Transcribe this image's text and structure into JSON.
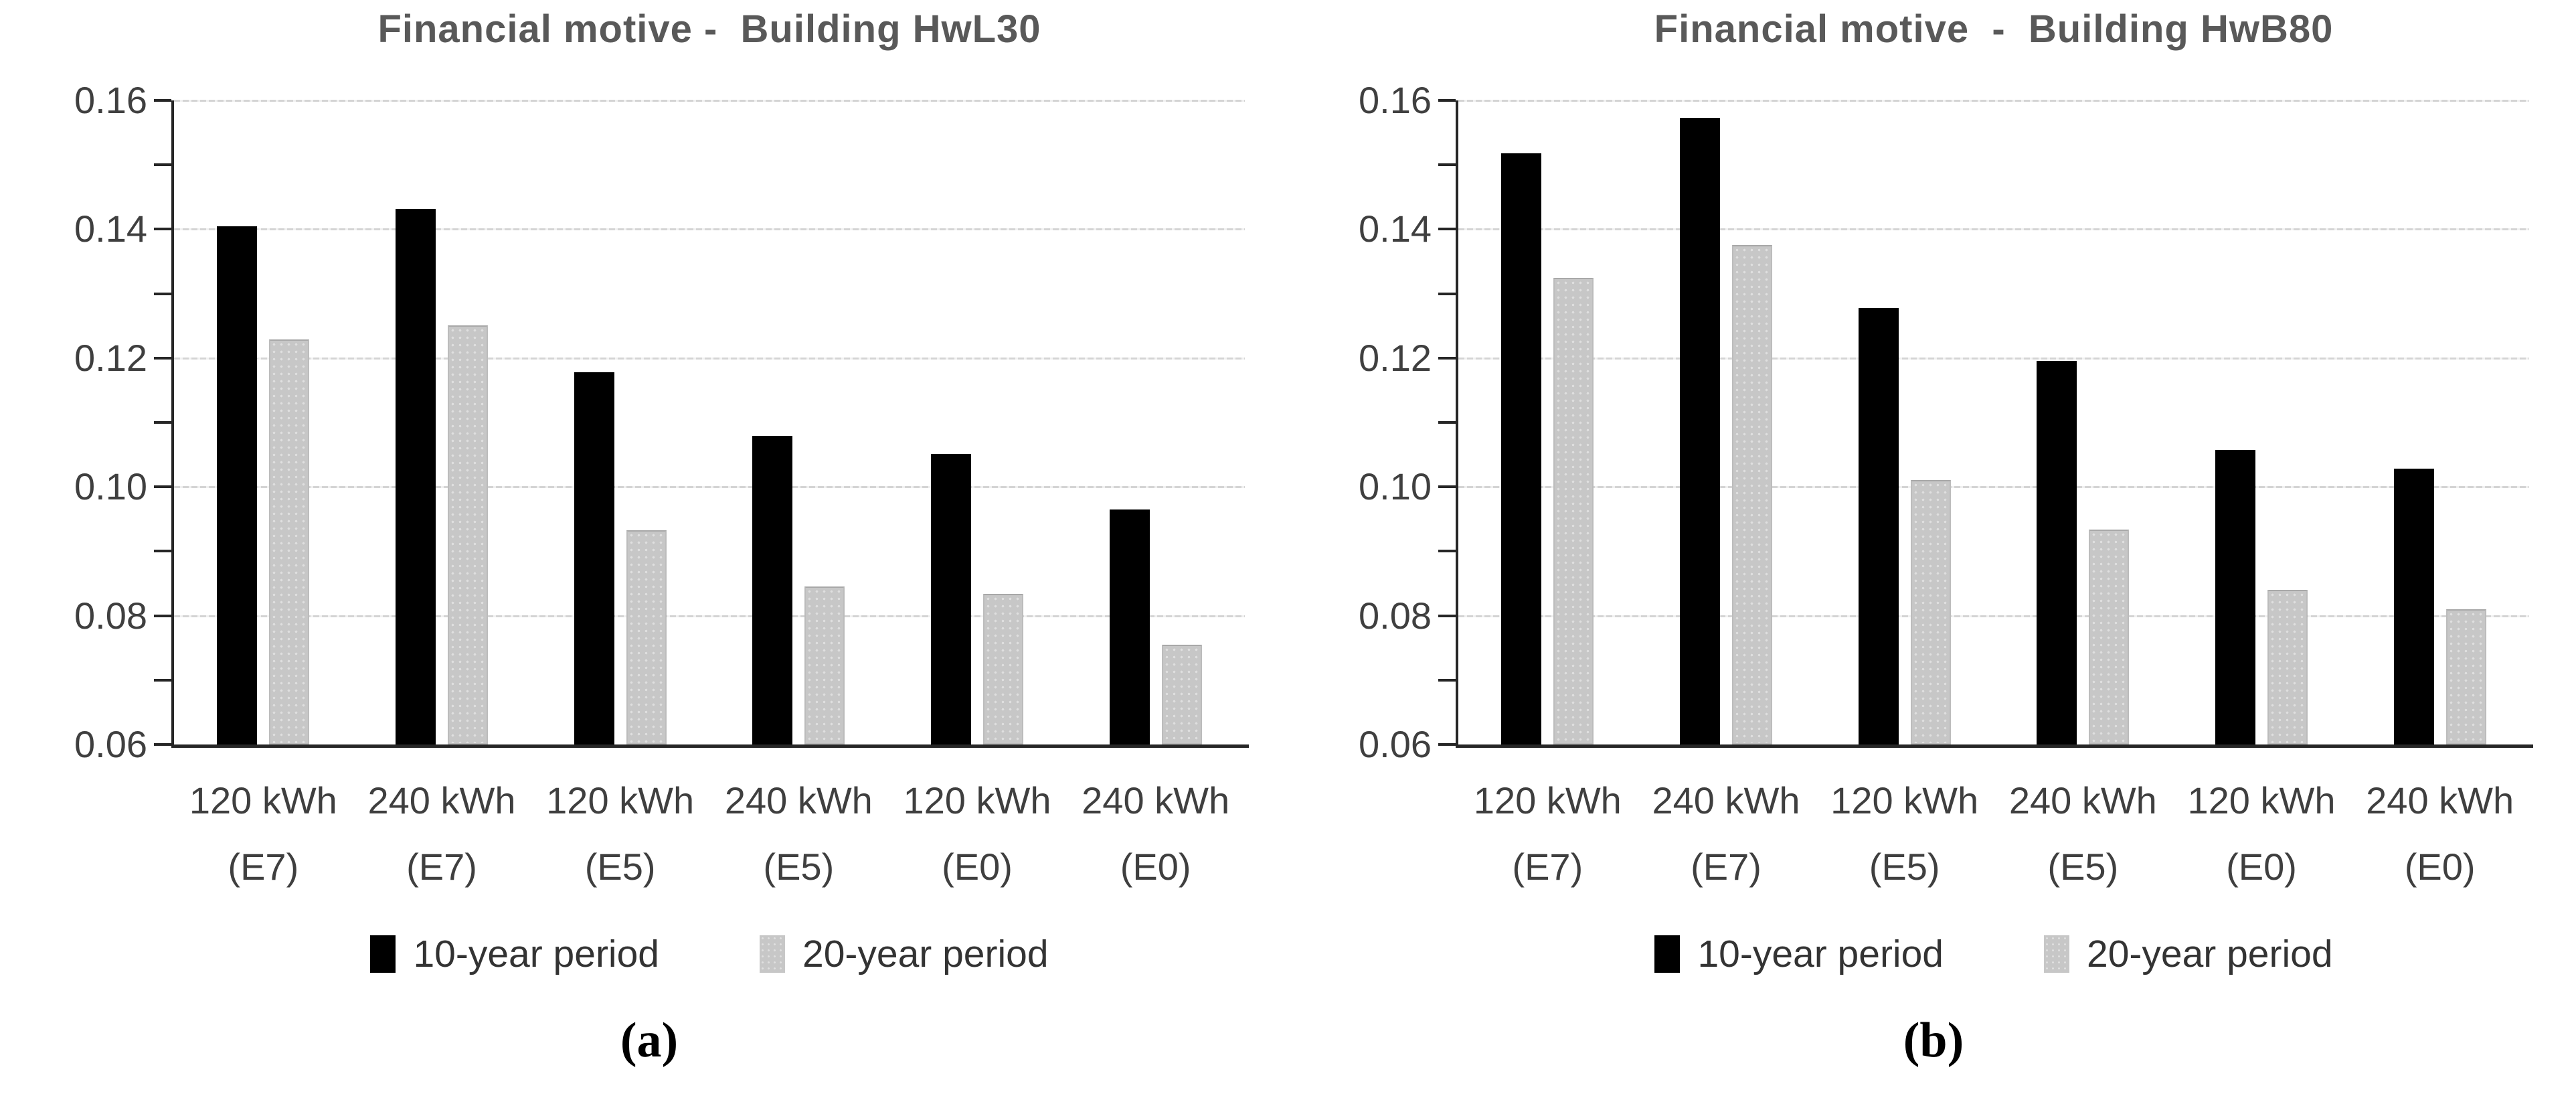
{
  "figure": {
    "captions": [
      "(a)",
      "(b)"
    ],
    "background": "#ffffff",
    "colors": {
      "bar_black": "#000000",
      "bar_gray": "#c7c7c7",
      "title_text": "#595959",
      "axis_text": "#3f3f3f",
      "axis_line": "#262626",
      "gridline": "#d4d4d4"
    }
  },
  "chart_data": [
    {
      "type": "bar",
      "title": "Financial motive -  Building HwL30",
      "xlabel": "",
      "ylabel": "",
      "categories": [
        "120 kWh (E7)",
        "240 kWh (E7)",
        "120 kWh (E5)",
        "240 kWh (E5)",
        "120 kWh (E0)",
        "240 kWh (E0)"
      ],
      "series": [
        {
          "name": "10-year period",
          "color": "#000000",
          "values": [
            0.1405,
            0.1432,
            0.1178,
            0.1079,
            0.1051,
            0.0965
          ]
        },
        {
          "name": "20-year period",
          "color": "#c7c7c7",
          "values": [
            0.1229,
            0.1251,
            0.0933,
            0.0845,
            0.0834,
            0.0755
          ]
        }
      ],
      "ylim": [
        0.06,
        0.16
      ],
      "y_major_ticks": [
        0.06,
        0.08,
        0.1,
        0.12,
        0.14,
        0.16
      ],
      "y_tick_labels": [
        "0.06",
        "0.08",
        "0.10",
        "0.12",
        "0.14",
        "0.16"
      ],
      "y_minor_step": 0.01,
      "grid": "horizontal-major-dotted",
      "legend_position": "bottom"
    },
    {
      "type": "bar",
      "title": "Financial motive  -  Building HwB80",
      "xlabel": "",
      "ylabel": "",
      "categories": [
        "120 kWh (E7)",
        "240 kWh (E7)",
        "120 kWh (E5)",
        "240 kWh (E5)",
        "120 kWh (E0)",
        "240 kWh (E0)"
      ],
      "series": [
        {
          "name": "10-year period",
          "color": "#000000",
          "values": [
            0.1518,
            0.1573,
            0.1278,
            0.1196,
            0.1057,
            0.1028
          ]
        },
        {
          "name": "20-year period",
          "color": "#c7c7c7",
          "values": [
            0.1325,
            0.1376,
            0.1011,
            0.0934,
            0.084,
            0.081
          ]
        }
      ],
      "ylim": [
        0.06,
        0.16
      ],
      "y_major_ticks": [
        0.06,
        0.08,
        0.1,
        0.12,
        0.14,
        0.16
      ],
      "y_tick_labels": [
        "0.06",
        "0.08",
        "0.10",
        "0.12",
        "0.14",
        "0.16"
      ],
      "y_minor_step": 0.01,
      "grid": "horizontal-major-dotted",
      "legend_position": "bottom"
    }
  ]
}
